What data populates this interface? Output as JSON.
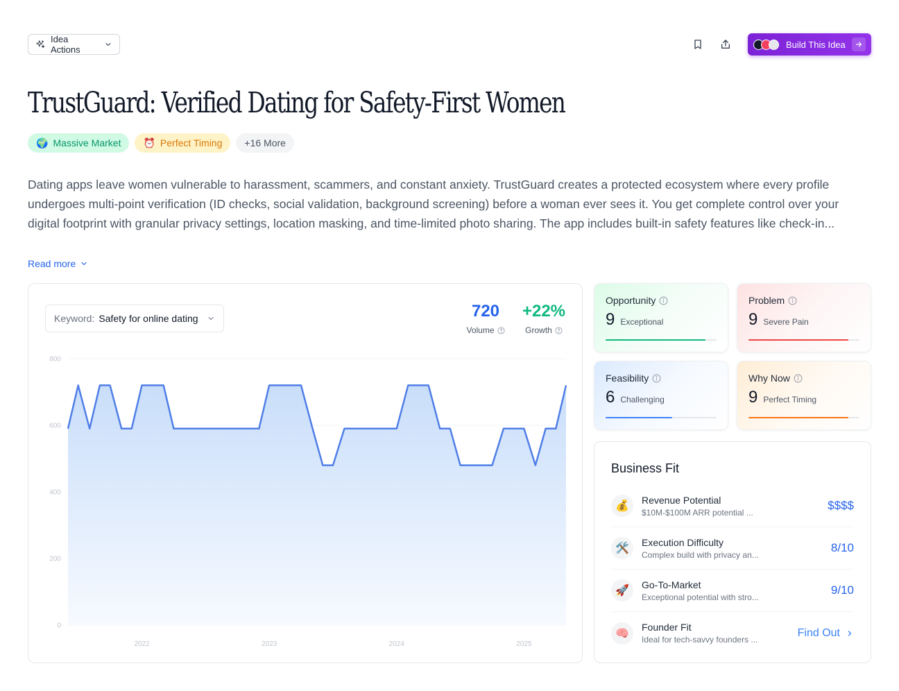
{
  "toolbar": {
    "idea_actions_label": "Idea Actions",
    "build_label": "Build This Idea"
  },
  "title": "TrustGuard: Verified Dating for Safety-First Women",
  "tags": [
    {
      "emoji": "🌍",
      "label": "Massive Market"
    },
    {
      "emoji": "⏰",
      "label": "Perfect Timing"
    },
    {
      "label": "+16 More"
    }
  ],
  "description": "Dating apps leave women vulnerable to harassment, scammers, and constant anxiety. TrustGuard creates a protected ecosystem where every profile undergoes multi-point verification (ID checks, social validation, background screening) before a woman ever sees it. You get complete control over your digital footprint with granular privacy settings, location masking, and time-limited photo sharing. The app includes built-in safety features like check-in...",
  "read_more_label": "Read more",
  "keyword": {
    "label": "Keyword:",
    "value": "Safety for online dating"
  },
  "stats": {
    "volume": {
      "value": "720",
      "label": "Volume"
    },
    "growth": {
      "value": "+22%",
      "label": "Growth"
    }
  },
  "chart_data": {
    "type": "area",
    "y_ticks": [
      "800",
      "600",
      "400",
      "200",
      "0"
    ],
    "ylim": [
      0,
      800
    ],
    "x_ticks": [
      "2022",
      "2023",
      "2024",
      "2025"
    ],
    "x_tick_positions": [
      2022,
      2023,
      2024,
      2025
    ],
    "xlim": [
      2021.42,
      2025.33
    ],
    "series": [
      {
        "x": [
          2021.42,
          2021.5,
          2021.59,
          2021.67,
          2021.75,
          2021.84,
          2021.92,
          2022.0,
          2022.09,
          2022.17,
          2022.25,
          2022.34,
          2022.42,
          2022.5,
          2022.59,
          2022.67,
          2022.75,
          2022.84,
          2022.92,
          2023.0,
          2023.09,
          2023.17,
          2023.25,
          2023.34,
          2023.42,
          2023.5,
          2023.59,
          2023.67,
          2023.75,
          2023.84,
          2023.92,
          2024.0,
          2024.09,
          2024.17,
          2024.25,
          2024.34,
          2024.42,
          2024.5,
          2024.59,
          2024.67,
          2024.75,
          2024.84,
          2024.92,
          2025.0,
          2025.09,
          2025.17,
          2025.25,
          2025.33
        ],
        "values": [
          590,
          720,
          590,
          720,
          720,
          590,
          590,
          720,
          720,
          720,
          590,
          590,
          590,
          590,
          590,
          590,
          590,
          590,
          590,
          720,
          720,
          720,
          720,
          590,
          480,
          480,
          590,
          590,
          590,
          590,
          590,
          590,
          720,
          720,
          720,
          590,
          590,
          480,
          480,
          480,
          480,
          590,
          590,
          590,
          480,
          590,
          590,
          720
        ]
      }
    ],
    "colors": {
      "line": "#4f7ee8",
      "fill_top": "#c9defa",
      "fill_bottom": "#f7faff"
    },
    "grid": true
  },
  "scores": [
    {
      "title": "Opportunity",
      "score": "9",
      "sub": "Exceptional",
      "level": 0.9,
      "color": "#10b981"
    },
    {
      "title": "Problem",
      "score": "9",
      "sub": "Severe Pain",
      "level": 0.9,
      "color": "#ef4444"
    },
    {
      "title": "Feasibility",
      "score": "6",
      "sub": "Challenging",
      "level": 0.6,
      "color": "#3b82f6"
    },
    {
      "title": "Why Now",
      "score": "9",
      "sub": "Perfect Timing",
      "level": 0.9,
      "color": "#f97316"
    }
  ],
  "business_fit": {
    "title": "Business Fit",
    "items": [
      {
        "icon": "💰",
        "name": "Revenue Potential",
        "desc": "$10M-$100M ARR potential ...",
        "value": "$$$$"
      },
      {
        "icon": "🛠️",
        "name": "Execution Difficulty",
        "desc": "Complex build with privacy an...",
        "value": "8/10"
      },
      {
        "icon": "🚀",
        "name": "Go-To-Market",
        "desc": "Exceptional potential with stro...",
        "value": "9/10"
      },
      {
        "icon": "🧠",
        "name": "Founder Fit",
        "desc": "Ideal for tech-savvy founders ...",
        "value": "Find Out"
      }
    ]
  }
}
